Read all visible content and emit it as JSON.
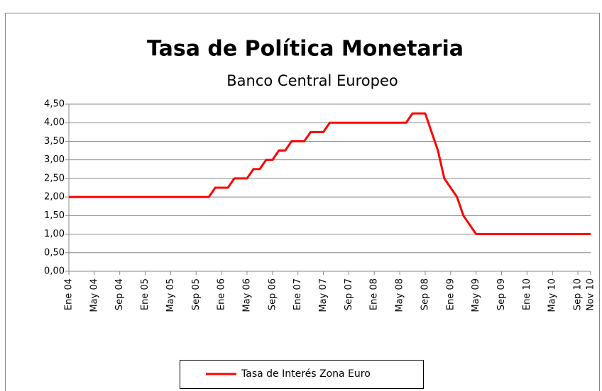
{
  "chart_data": {
    "type": "line",
    "title": "Tasa de Política Monetaria",
    "subtitle": "Banco Central Europeo",
    "categories": [
      "Ene 04",
      null,
      null,
      null,
      "May 04",
      null,
      null,
      null,
      "Sep 04",
      null,
      null,
      null,
      "Ene 05",
      null,
      null,
      null,
      "May 05",
      null,
      null,
      null,
      "Sep 05",
      null,
      null,
      null,
      "Ene 06",
      null,
      null,
      null,
      "May 06",
      null,
      null,
      null,
      "Sep 06",
      null,
      null,
      null,
      "Ene 07",
      null,
      null,
      null,
      "May 07",
      null,
      null,
      null,
      "Sep 07",
      null,
      null,
      null,
      "Ene 08",
      null,
      null,
      null,
      "May 08",
      null,
      null,
      null,
      "Sep 08",
      null,
      null,
      null,
      "Ene 09",
      null,
      null,
      null,
      "May 09",
      null,
      null,
      null,
      "Sep 09",
      null,
      null,
      null,
      "Ene 10",
      null,
      null,
      null,
      "May 10",
      null,
      null,
      null,
      "Sep 10",
      null,
      "Nov 10"
    ],
    "series": [
      {
        "name": "Tasa de Interés Zona Euro",
        "color": "#ff0000",
        "values": [
          2,
          2,
          2,
          2,
          2,
          2,
          2,
          2,
          2,
          2,
          2,
          2,
          2,
          2,
          2,
          2,
          2,
          2,
          2,
          2,
          2,
          2,
          2,
          2.25,
          2.25,
          2.25,
          2.5,
          2.5,
          2.5,
          2.75,
          2.75,
          3,
          3,
          3.25,
          3.25,
          3.5,
          3.5,
          3.5,
          3.75,
          3.75,
          3.75,
          4,
          4,
          4,
          4,
          4,
          4,
          4,
          4,
          4,
          4,
          4,
          4,
          4,
          4.25,
          4.25,
          4.25,
          3.75,
          3.25,
          2.5,
          2.25,
          2,
          1.5,
          1.25,
          1,
          1,
          1,
          1,
          1,
          1,
          1,
          1,
          1,
          1,
          1,
          1,
          1,
          1,
          1,
          1,
          1,
          1,
          1
        ]
      }
    ],
    "ylim": [
      0,
      4.5
    ],
    "yticks": [
      {
        "value": 0,
        "label": "0,00"
      },
      {
        "value": 0.5,
        "label": "0,50"
      },
      {
        "value": 1,
        "label": "1,00"
      },
      {
        "value": 1.5,
        "label": "1,50"
      },
      {
        "value": 2,
        "label": "2,00"
      },
      {
        "value": 2.5,
        "label": "2,50"
      },
      {
        "value": 3,
        "label": "3,00"
      },
      {
        "value": 3.5,
        "label": "3,50"
      },
      {
        "value": 4,
        "label": "4,00"
      },
      {
        "value": 4.5,
        "label": "4,50"
      }
    ],
    "grid": true,
    "legend": "bottom"
  }
}
